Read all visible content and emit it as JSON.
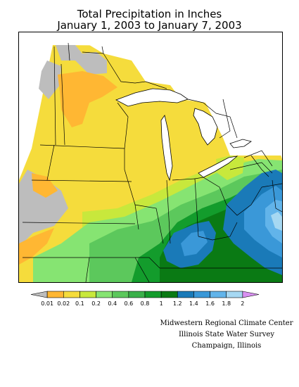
{
  "title": {
    "line1": "Total Precipitation in Inches",
    "line2": "January 1, 2003 to January 7, 2003"
  },
  "legend": {
    "labels": [
      "0.01",
      "0.02",
      "0.1",
      "0.2",
      "0.4",
      "0.6",
      "0.8",
      "1",
      "1.2",
      "1.4",
      "1.6",
      "1.8",
      "2"
    ],
    "colors": [
      "#bdbdbd",
      "#ffb733",
      "#f5dc3c",
      "#c8e83c",
      "#86e472",
      "#5cc85c",
      "#3ab04a",
      "#139c2c",
      "#0a7a14",
      "#1a7ab8",
      "#3a98d8",
      "#62b4ea",
      "#a6d8f2",
      "#d890f0"
    ]
  },
  "credits": {
    "line1": "Midwestern Regional Climate Center",
    "line2": "Illinois State Water Survey",
    "line3": "Champaign, Illinois"
  }
}
